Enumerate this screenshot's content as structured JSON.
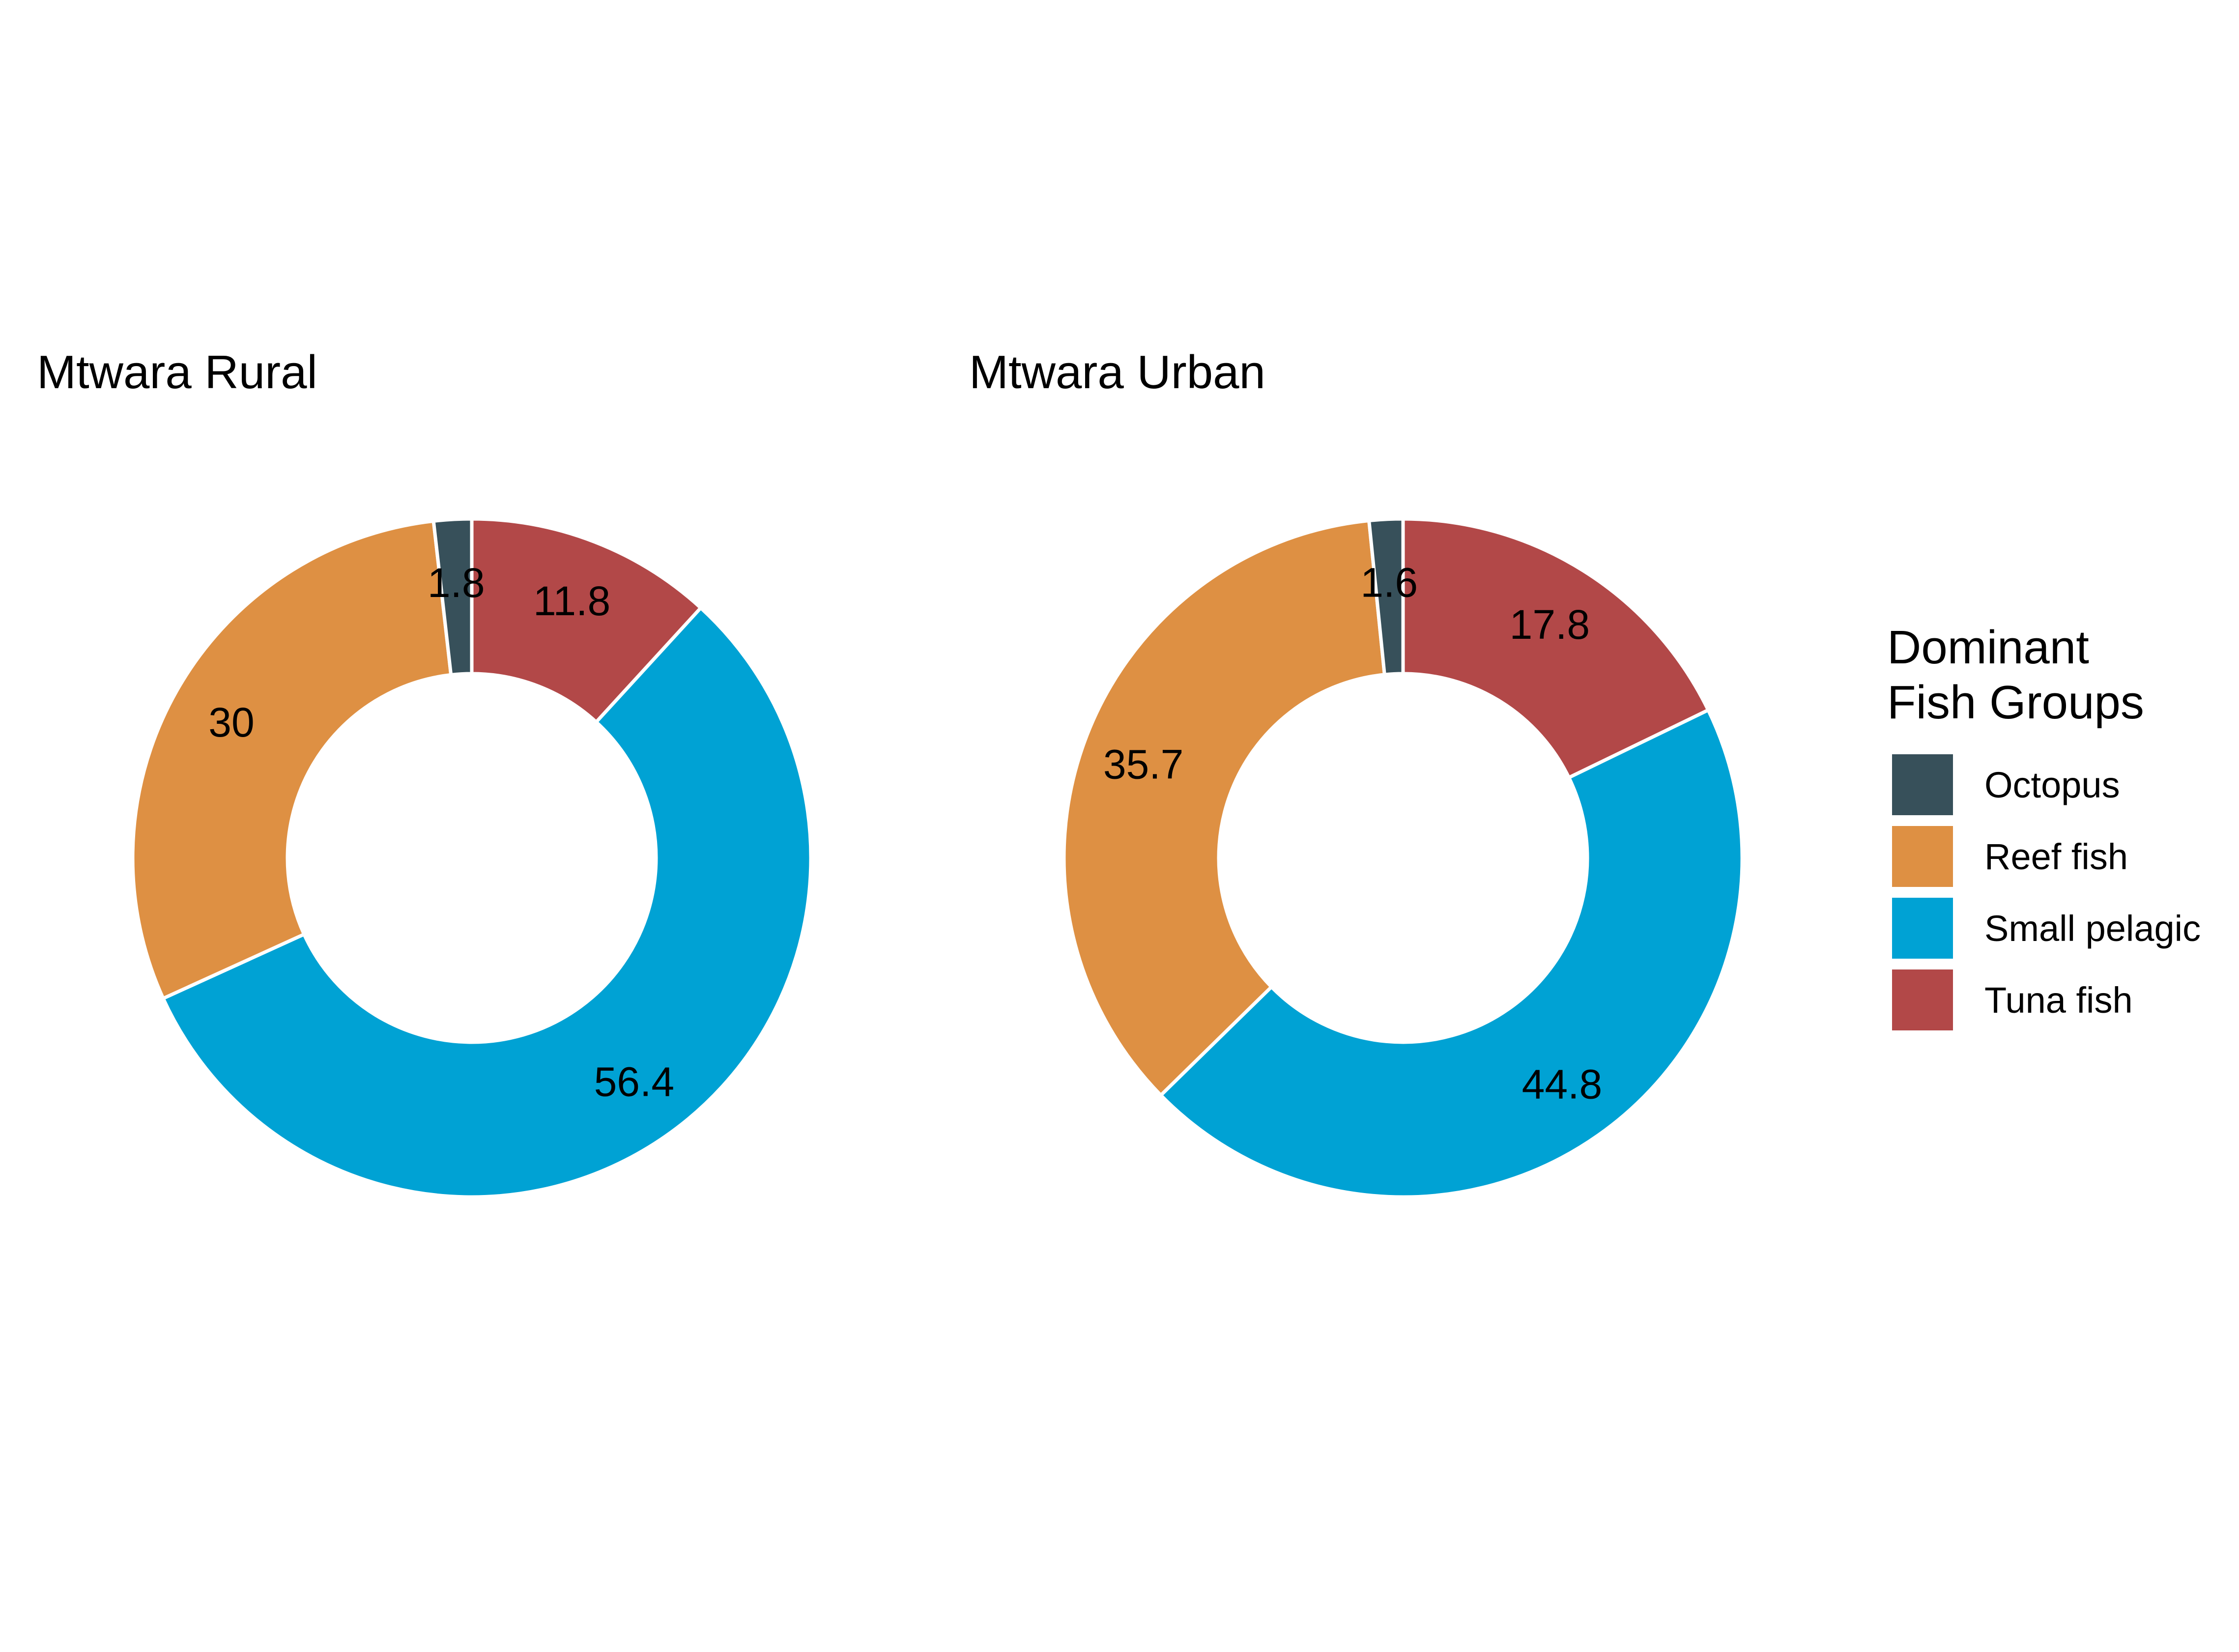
{
  "chart_data": [
    {
      "type": "pie",
      "variant": "donut",
      "title": "Mtwara Rural",
      "categories": [
        "Octopus",
        "Reef fish",
        "Small pelagic",
        "Tuna fish"
      ],
      "values": [
        1.8,
        30,
        56.4,
        11.8
      ],
      "value_labels": [
        "1.8",
        "30",
        "56.4",
        "11.8"
      ]
    },
    {
      "type": "pie",
      "variant": "donut",
      "title": "Mtwara Urban",
      "categories": [
        "Octopus",
        "Reef fish",
        "Small pelagic",
        "Tuna fish"
      ],
      "values": [
        1.6,
        35.7,
        44.8,
        17.8
      ],
      "value_labels": [
        "1.6",
        "35.7",
        "44.8",
        "17.8"
      ]
    }
  ],
  "legend": {
    "title_lines": [
      "Dominant",
      "Fish Groups"
    ],
    "placement": "right",
    "items": [
      {
        "label": "Octopus",
        "color": "#37505a"
      },
      {
        "label": "Reef fish",
        "color": "#de9043"
      },
      {
        "label": "Small pelagic",
        "color": "#00a2d4"
      },
      {
        "label": "Tuna fish",
        "color": "#b24848"
      }
    ]
  },
  "colors": {
    "Octopus": "#37505a",
    "Reef fish": "#de9043",
    "Small pelagic": "#00a2d4",
    "Tuna fish": "#b24848",
    "slice_border": "#ffffff"
  }
}
